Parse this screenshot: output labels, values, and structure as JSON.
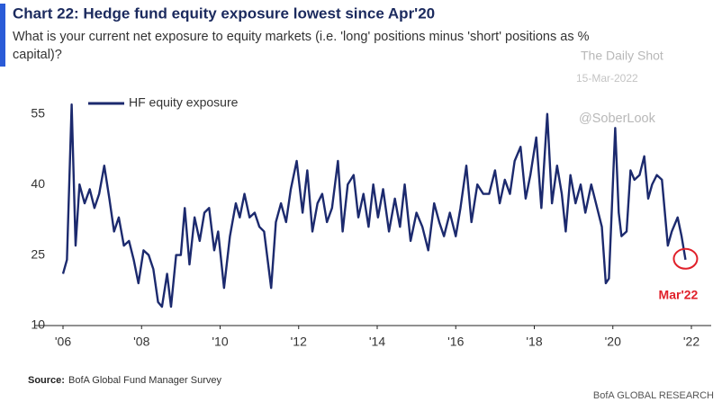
{
  "chart_data": {
    "type": "line",
    "title": "Chart 22: Hedge fund equity exposure lowest since Apr'20",
    "subtitle": [
      "What is your current net exposure to equity markets (i.e. 'long' positions minus 'short' positions as %",
      "capital)?"
    ],
    "watermark": [
      "The Daily Shot",
      "15-Mar-2022",
      "@SoberLook"
    ],
    "annotation": "Mar'22",
    "source_label": "Source:",
    "source": "BofA Global Fund Manager Survey",
    "footer": "BofA GLOBAL RESEARCH",
    "x": [
      2006.0,
      2006.1,
      2006.22,
      2006.32,
      2006.42,
      2006.55,
      2006.68,
      2006.8,
      2006.92,
      2007.05,
      2007.18,
      2007.3,
      2007.42,
      2007.55,
      2007.68,
      2007.8,
      2007.92,
      2008.05,
      2008.18,
      2008.3,
      2008.42,
      2008.52,
      2008.65,
      2008.75,
      2008.88,
      2009.0,
      2009.1,
      2009.22,
      2009.35,
      2009.48,
      2009.6,
      2009.72,
      2009.85,
      2009.95,
      2010.1,
      2010.25,
      2010.4,
      2010.5,
      2010.62,
      2010.75,
      2010.88,
      2011.0,
      2011.12,
      2011.3,
      2011.42,
      2011.55,
      2011.68,
      2011.8,
      2011.95,
      2012.1,
      2012.22,
      2012.35,
      2012.48,
      2012.6,
      2012.72,
      2012.85,
      2013.0,
      2013.12,
      2013.25,
      2013.4,
      2013.52,
      2013.65,
      2013.78,
      2013.9,
      2014.02,
      2014.15,
      2014.3,
      2014.45,
      2014.58,
      2014.7,
      2014.85,
      2015.0,
      2015.15,
      2015.3,
      2015.45,
      2015.58,
      2015.7,
      2015.85,
      2016.0,
      2016.12,
      2016.27,
      2016.4,
      2016.55,
      2016.7,
      2016.85,
      2017.0,
      2017.12,
      2017.25,
      2017.38,
      2017.5,
      2017.65,
      2017.78,
      2017.9,
      2018.05,
      2018.18,
      2018.33,
      2018.45,
      2018.58,
      2018.7,
      2018.8,
      2018.92,
      2019.05,
      2019.18,
      2019.3,
      2019.45,
      2019.6,
      2019.72,
      2019.82,
      2019.9,
      2020.06,
      2020.15,
      2020.22,
      2020.35,
      2020.45,
      2020.55,
      2020.68,
      2020.8,
      2020.9,
      2021.0,
      2021.12,
      2021.25,
      2021.4,
      2021.5,
      2021.65,
      2021.75,
      2021.85
    ],
    "series": [
      {
        "name": "HF equity exposure",
        "color": "#1c2a6e",
        "values": [
          21,
          24,
          57,
          27,
          40,
          36,
          39,
          35,
          38,
          44,
          37,
          30,
          33,
          27,
          28,
          24,
          19,
          26,
          25,
          22,
          15,
          14,
          21,
          14,
          25,
          25,
          35,
          23,
          33,
          28,
          34,
          35,
          26,
          30,
          18,
          29,
          36,
          33,
          38,
          33,
          34,
          31,
          30,
          18,
          32,
          36,
          32,
          39,
          45,
          34,
          43,
          30,
          36,
          38,
          32,
          35,
          45,
          30,
          40,
          42,
          33,
          38,
          31,
          40,
          33,
          39,
          30,
          37,
          31,
          40,
          28,
          34,
          31,
          26,
          36,
          32,
          29,
          34,
          29,
          35,
          44,
          32,
          40,
          38,
          38,
          43,
          36,
          41,
          38,
          45,
          48,
          37,
          42,
          50,
          35,
          55,
          36,
          44,
          38,
          30,
          42,
          36,
          40,
          34,
          40,
          35,
          31,
          19,
          20,
          52,
          34,
          29,
          30,
          43,
          41,
          42,
          46,
          37,
          40,
          42,
          41,
          27,
          30,
          33,
          29,
          24
        ]
      }
    ],
    "xlim": [
      2006,
      2022
    ],
    "xticks": [
      {
        "value": 2006,
        "label": "'06"
      },
      {
        "value": 2008,
        "label": "'08"
      },
      {
        "value": 2010,
        "label": "'10"
      },
      {
        "value": 2012,
        "label": "'12"
      },
      {
        "value": 2014,
        "label": "'14"
      },
      {
        "value": 2016,
        "label": "'16"
      },
      {
        "value": 2018,
        "label": "'18"
      },
      {
        "value": 2020,
        "label": "'20"
      },
      {
        "value": 2022,
        "label": "'22"
      }
    ],
    "ylim": [
      10,
      58
    ],
    "yticks": [
      10,
      25,
      40,
      55
    ],
    "grid": false
  }
}
